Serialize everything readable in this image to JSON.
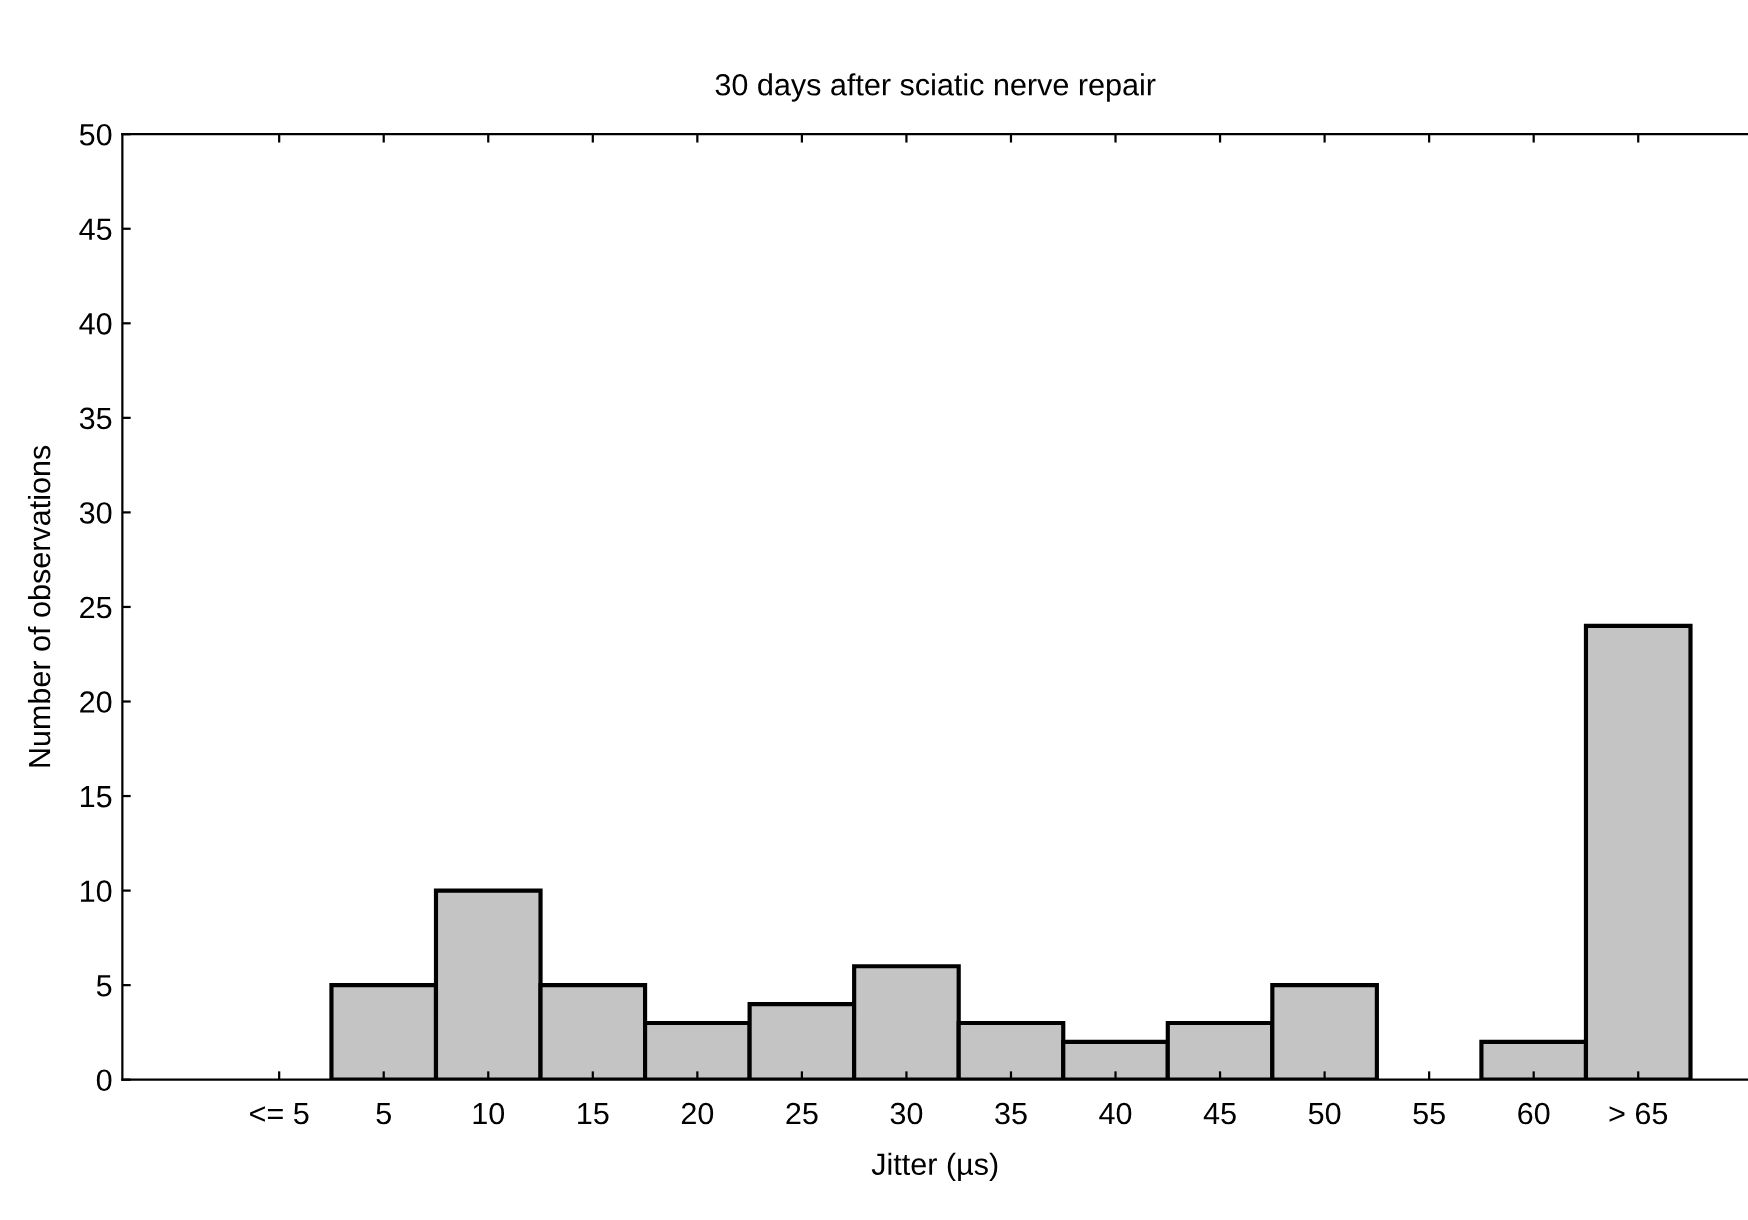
{
  "chart_data": {
    "type": "bar",
    "title": "30 days after sciatic nerve repair",
    "xlabel": "Jitter (µs)",
    "ylabel": "Number of observations",
    "categories": [
      "<= 5",
      "5",
      "10",
      "15",
      "20",
      "25",
      "30",
      "35",
      "40",
      "45",
      "50",
      "55",
      "60",
      "> 65"
    ],
    "values": [
      0,
      5,
      10,
      5,
      3,
      4,
      6,
      3,
      2,
      3,
      5,
      0,
      2,
      24
    ],
    "color": "#c4c4c4",
    "ylim": [
      0,
      50
    ],
    "yticks": [
      0,
      5,
      10,
      15,
      20,
      25,
      30,
      35,
      40,
      45,
      50
    ],
    "grid": false
  }
}
